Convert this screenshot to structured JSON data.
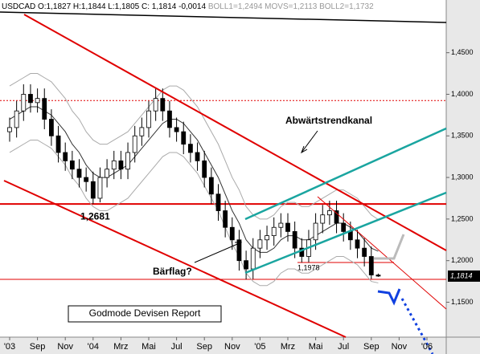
{
  "chart_data": {
    "type": "candlestick",
    "title": "USDCAD O:1,1827 H:1,1844 L:1,1805 C: 1,1814 -0,0014",
    "subtitle": "BOLL1=1,2494 MOVS=1,2113 BOLL2=1,1732",
    "categories": [
      "'03",
      null,
      null,
      null,
      "Sep",
      null,
      null,
      null,
      "Nov",
      null,
      null,
      null,
      "'04",
      null,
      null,
      null,
      "Mrz",
      null,
      null,
      null,
      "Mai",
      null,
      null,
      null,
      "Jul",
      null,
      null,
      null,
      "Sep",
      null,
      null,
      null,
      "Nov",
      null,
      null,
      null,
      "'05",
      null,
      null,
      null,
      "Mrz",
      null,
      null,
      null,
      "Mai",
      null,
      null,
      null,
      "Jul",
      null,
      null,
      null,
      "Sep",
      null,
      null,
      null,
      "Nov",
      null,
      null,
      null,
      "'06",
      null,
      null
    ],
    "ohlc": [
      [
        1.355,
        1.372,
        1.343,
        1.36
      ],
      [
        1.36,
        1.392,
        1.348,
        1.38
      ],
      [
        1.38,
        1.412,
        1.368,
        1.4
      ],
      [
        1.4,
        1.412,
        1.378,
        1.39
      ],
      [
        1.39,
        1.407,
        1.378,
        1.395
      ],
      [
        1.395,
        1.407,
        1.358,
        1.37
      ],
      [
        1.37,
        1.382,
        1.338,
        1.35
      ],
      [
        1.35,
        1.362,
        1.318,
        1.33
      ],
      [
        1.33,
        1.342,
        1.308,
        1.32
      ],
      [
        1.32,
        1.332,
        1.298,
        1.31
      ],
      [
        1.31,
        1.322,
        1.288,
        1.3
      ],
      [
        1.3,
        1.312,
        1.283,
        1.295
      ],
      [
        1.295,
        1.307,
        1.2681,
        1.275
      ],
      [
        1.275,
        1.312,
        1.27,
        1.3
      ],
      [
        1.3,
        1.322,
        1.288,
        1.31
      ],
      [
        1.31,
        1.332,
        1.298,
        1.32
      ],
      [
        1.32,
        1.332,
        1.298,
        1.31
      ],
      [
        1.31,
        1.342,
        1.298,
        1.33
      ],
      [
        1.33,
        1.362,
        1.318,
        1.35
      ],
      [
        1.35,
        1.372,
        1.338,
        1.36
      ],
      [
        1.36,
        1.392,
        1.348,
        1.38
      ],
      [
        1.38,
        1.407,
        1.368,
        1.395
      ],
      [
        1.395,
        1.407,
        1.368,
        1.38
      ],
      [
        1.38,
        1.392,
        1.348,
        1.36
      ],
      [
        1.36,
        1.372,
        1.343,
        1.355
      ],
      [
        1.355,
        1.367,
        1.328,
        1.34
      ],
      [
        1.34,
        1.352,
        1.318,
        1.33
      ],
      [
        1.33,
        1.342,
        1.308,
        1.32
      ],
      [
        1.32,
        1.332,
        1.288,
        1.3
      ],
      [
        1.3,
        1.312,
        1.268,
        1.28
      ],
      [
        1.28,
        1.292,
        1.248,
        1.26
      ],
      [
        1.26,
        1.272,
        1.228,
        1.24
      ],
      [
        1.24,
        1.252,
        1.213,
        1.225
      ],
      [
        1.225,
        1.237,
        1.188,
        1.2
      ],
      [
        1.2,
        1.212,
        1.1775,
        1.19
      ],
      [
        1.19,
        1.227,
        1.178,
        1.215
      ],
      [
        1.215,
        1.237,
        1.203,
        1.225
      ],
      [
        1.225,
        1.242,
        1.213,
        1.23
      ],
      [
        1.23,
        1.252,
        1.218,
        1.24
      ],
      [
        1.24,
        1.257,
        1.228,
        1.245
      ],
      [
        1.245,
        1.257,
        1.223,
        1.235
      ],
      [
        1.235,
        1.247,
        1.203,
        1.215
      ],
      [
        1.215,
        1.227,
        1.1978,
        1.205
      ],
      [
        1.205,
        1.237,
        1.198,
        1.225
      ],
      [
        1.225,
        1.257,
        1.213,
        1.245
      ],
      [
        1.245,
        1.267,
        1.233,
        1.255
      ],
      [
        1.255,
        1.272,
        1.243,
        1.26
      ],
      [
        1.26,
        1.272,
        1.233,
        1.245
      ],
      [
        1.245,
        1.257,
        1.223,
        1.235
      ],
      [
        1.235,
        1.247,
        1.213,
        1.225
      ],
      [
        1.225,
        1.237,
        1.203,
        1.215
      ],
      [
        1.215,
        1.227,
        1.193,
        1.205
      ],
      [
        1.205,
        1.217,
        1.178,
        1.1827
      ],
      [
        1.1827,
        1.1844,
        1.1805,
        1.1814
      ],
      null,
      null,
      null,
      null,
      null,
      null,
      null,
      null,
      null
    ],
    "series": [
      {
        "name": "MOVS",
        "color": "#333333",
        "values": [
          1.37,
          1.375,
          1.38,
          1.385,
          1.385,
          1.38,
          1.375,
          1.365,
          1.355,
          1.34,
          1.33,
          1.315,
          1.305,
          1.3,
          1.3,
          1.305,
          1.31,
          1.315,
          1.325,
          1.335,
          1.345,
          1.355,
          1.365,
          1.37,
          1.37,
          1.365,
          1.355,
          1.345,
          1.33,
          1.315,
          1.3,
          1.28,
          1.26,
          1.245,
          1.225,
          1.215,
          1.21,
          1.21,
          1.215,
          1.225,
          1.23,
          1.23,
          1.225,
          1.225,
          1.23,
          1.235,
          1.24,
          1.245,
          1.245,
          1.24,
          1.235,
          1.225,
          1.215,
          1.2113,
          null,
          null,
          null,
          null,
          null,
          null,
          null,
          null,
          null
        ]
      },
      {
        "name": "BOLL1",
        "color": "#aaaaaa",
        "values": [
          1.41,
          1.415,
          1.42,
          1.425,
          1.425,
          1.42,
          1.415,
          1.405,
          1.395,
          1.38,
          1.37,
          1.355,
          1.345,
          1.34,
          1.34,
          1.345,
          1.35,
          1.355,
          1.365,
          1.375,
          1.385,
          1.395,
          1.405,
          1.41,
          1.41,
          1.405,
          1.395,
          1.385,
          1.37,
          1.355,
          1.34,
          1.32,
          1.3,
          1.285,
          1.265,
          1.255,
          1.25,
          1.25,
          1.255,
          1.265,
          1.27,
          1.27,
          1.265,
          1.265,
          1.27,
          1.275,
          1.28,
          1.285,
          1.285,
          1.28,
          1.275,
          1.265,
          1.255,
          1.2494,
          null,
          null,
          null,
          null,
          null,
          null,
          null,
          null,
          null
        ]
      },
      {
        "name": "BOLL2",
        "color": "#aaaaaa",
        "values": [
          1.33,
          1.335,
          1.34,
          1.345,
          1.345,
          1.34,
          1.335,
          1.325,
          1.315,
          1.3,
          1.29,
          1.275,
          1.265,
          1.26,
          1.26,
          1.265,
          1.27,
          1.275,
          1.285,
          1.295,
          1.305,
          1.315,
          1.325,
          1.33,
          1.33,
          1.325,
          1.315,
          1.305,
          1.29,
          1.275,
          1.26,
          1.24,
          1.22,
          1.205,
          1.185,
          1.175,
          1.17,
          1.17,
          1.175,
          1.185,
          1.19,
          1.19,
          1.185,
          1.185,
          1.19,
          1.195,
          1.2,
          1.205,
          1.205,
          1.2,
          1.195,
          1.185,
          1.175,
          1.1732,
          null,
          null,
          null,
          null,
          null,
          null,
          null,
          null,
          null
        ]
      }
    ],
    "ylim": [
      1.108,
      1.496
    ],
    "yticks": [
      {
        "value": 1.15,
        "label": "1,1500"
      },
      {
        "value": 1.2,
        "label": "1,2000"
      },
      {
        "value": 1.25,
        "label": "1,2500"
      },
      {
        "value": 1.3,
        "label": "1,3000"
      },
      {
        "value": 1.35,
        "label": "1,3500"
      },
      {
        "value": 1.4,
        "label": "1,4000"
      },
      {
        "value": 1.45,
        "label": "1,4500"
      }
    ],
    "last_price": {
      "value": 1.1814,
      "label": "1,1814"
    },
    "levels": [
      {
        "value": 1.2681,
        "label": "1,2681"
      },
      {
        "value": 1.1978,
        "label": "1,1978"
      }
    ],
    "hlines": [
      1.3925,
      1.1775
    ],
    "annotations": [
      "Abwärtstrendkanal",
      "Bärflag?"
    ],
    "footer": "Godmode Devisen Report"
  }
}
